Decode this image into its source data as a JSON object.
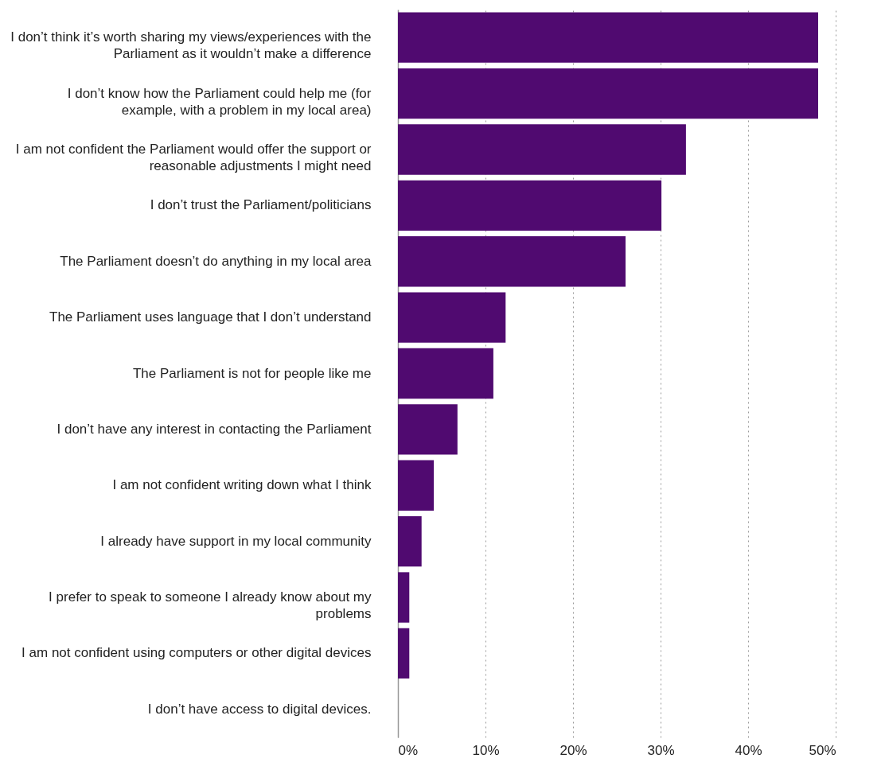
{
  "chart_data": {
    "type": "bar",
    "orientation": "horizontal",
    "categories": [
      "I don’t think it’s worth sharing my views/experiences with the Parliament as it wouldn’t make a difference",
      "I don’t know how the Parliament could help me (for example, with a problem in my local area)",
      "I am not confident the Parliament would offer the support or reasonable adjustments I might need",
      "I don’t trust the Parliament/politicians",
      "The Parliament doesn’t do anything in my local area",
      "The Parliament uses language that I don’t understand",
      "The Parliament is not for people like me",
      "I don’t have any interest in contacting the Parliament",
      "I am not confident writing down what I think",
      "I already have support in my local community",
      "I prefer to speak to someone I already know about my problems",
      "I am not confident using computers or other digital devices",
      "I don’t have access to digital devices."
    ],
    "values": [
      48,
      48,
      32.9,
      30.1,
      26,
      12.3,
      10.9,
      6.8,
      4.1,
      2.7,
      1.3,
      1.3,
      0
    ],
    "color": "#500a70",
    "xlim": [
      0,
      50
    ],
    "xticks": [
      {
        "value": 0,
        "label": "0%"
      },
      {
        "value": 10,
        "label": "10%"
      },
      {
        "value": 20,
        "label": "20%"
      },
      {
        "value": 30,
        "label": "30%"
      },
      {
        "value": 40,
        "label": "40%"
      },
      {
        "value": 50,
        "label": "50%"
      }
    ],
    "grid": "x"
  }
}
